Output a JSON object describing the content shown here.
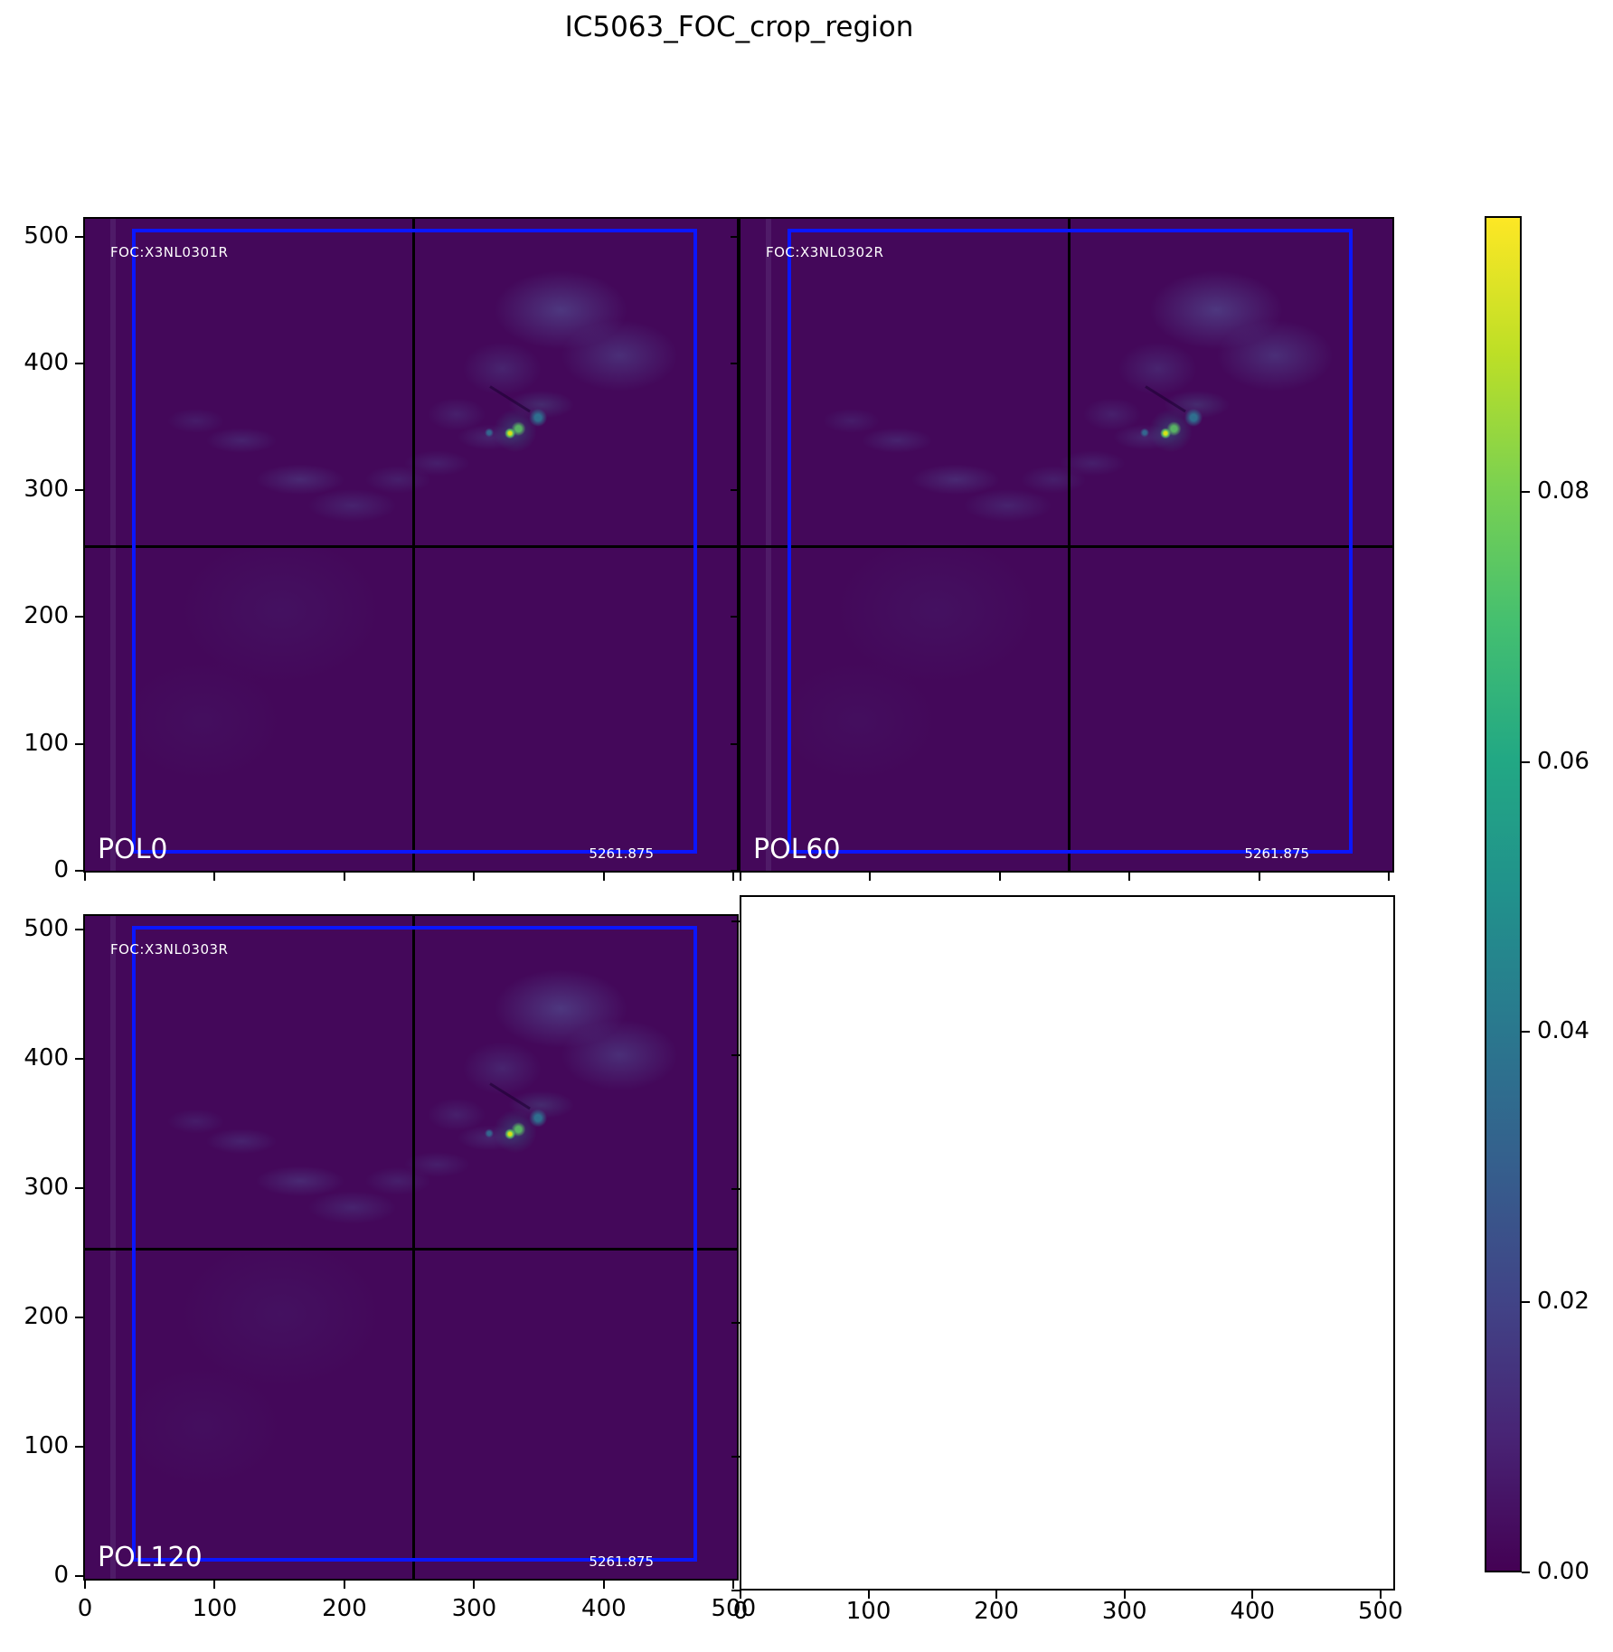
{
  "title": "IC5063_FOC_crop_region",
  "panels": [
    {
      "name": "POL0",
      "foc_label": "FOC:X3NL0301R",
      "pol_label": "POL0",
      "flux_label": "5261.875"
    },
    {
      "name": "POL60",
      "foc_label": "FOC:X3NL0302R",
      "pol_label": "POL60",
      "flux_label": "5261.875"
    },
    {
      "name": "POL120",
      "foc_label": "FOC:X3NL0303R",
      "pol_label": "POL120",
      "flux_label": "5261.875"
    }
  ],
  "axes": {
    "x_tick_labels": [
      "0",
      "100",
      "200",
      "300",
      "400",
      "500"
    ],
    "x_tick_values": [
      0,
      100,
      200,
      300,
      400,
      500
    ],
    "y_tick_labels": [
      "0",
      "100",
      "200",
      "300",
      "400",
      "500"
    ],
    "y_tick_values": [
      0,
      100,
      200,
      300,
      400,
      500
    ]
  },
  "colorbar": {
    "tick_labels": [
      "0.00",
      "0.02",
      "0.04",
      "0.06",
      "0.08"
    ],
    "tick_values": [
      0,
      0.02,
      0.04,
      0.06,
      0.08
    ],
    "vmin": 0.0,
    "vmax": 0.1004,
    "colormap": "viridis"
  },
  "colors": {
    "overlay_rect": "#0b16ff",
    "crosshair": "#000000",
    "panel_background": "#44085a",
    "colorbar_top": "#fde725",
    "colorbar_bottom": "#440154",
    "knot_peak": "#d8e219"
  },
  "chart_data": {
    "type": "heatmap",
    "title": "IC5063_FOC_crop_region",
    "layout": "2x2 grid, bottom-right cell empty, shared viridis colorbar on right",
    "subplots": [
      {
        "row": 0,
        "col": 0,
        "label": "POL0",
        "annotation": "FOC:X3NL0301R",
        "corner_value": "5261.875",
        "x_range": [
          0,
          512
        ],
        "y_range": [
          0,
          512
        ],
        "crosshair": [
          256,
          256
        ],
        "overlay_rect_data": [
          35,
          13,
          473,
          503
        ]
      },
      {
        "row": 0,
        "col": 1,
        "label": "POL60",
        "annotation": "FOC:X3NL0302R",
        "corner_value": "5261.875",
        "x_range": [
          0,
          512
        ],
        "y_range": [
          0,
          512
        ],
        "crosshair": [
          256,
          256
        ],
        "overlay_rect_data": [
          35,
          13,
          473,
          503
        ]
      },
      {
        "row": 1,
        "col": 0,
        "label": "POL120",
        "annotation": "FOC:X3NL0303R",
        "corner_value": "5261.875",
        "x_range": [
          0,
          512
        ],
        "y_range": [
          0,
          512
        ],
        "crosshair": [
          256,
          256
        ],
        "overlay_rect_data": [
          35,
          13,
          473,
          503
        ]
      },
      {
        "row": 1,
        "col": 1,
        "label": "empty axes"
      }
    ],
    "x_ticks": [
      0,
      100,
      200,
      300,
      400,
      500
    ],
    "y_ticks": [
      0,
      100,
      200,
      300,
      400,
      500
    ],
    "colorbar_range": [
      0.0,
      0.1004
    ],
    "colorbar_ticks": [
      0.0,
      0.02,
      0.04,
      0.06,
      0.08
    ],
    "image_features": [
      {
        "name": "bright-compact-knot",
        "data_x": 335,
        "data_y": 345,
        "approx_peak_value": 0.09
      },
      {
        "name": "diffuse-cloud-upper-right",
        "data_x": 430,
        "data_y": 420,
        "approx_value": 0.025
      },
      {
        "name": "faint-emission-arc-left",
        "data_x": 200,
        "data_y": 295,
        "approx_value": 0.02
      },
      {
        "name": "background",
        "approx_value": 0.004
      }
    ]
  }
}
